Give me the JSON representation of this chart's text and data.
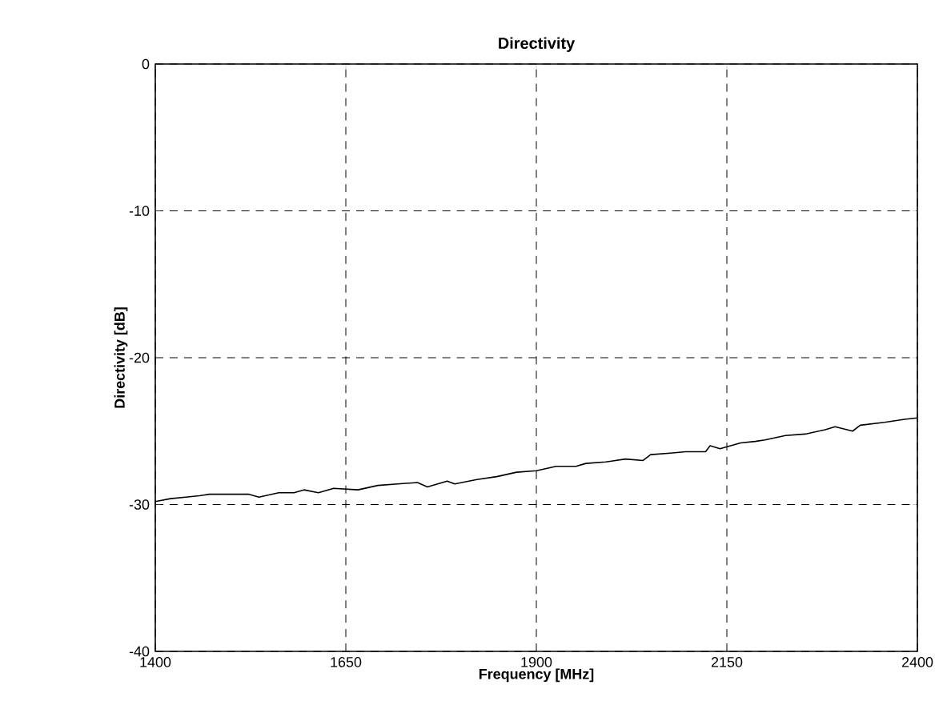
{
  "chart_data": {
    "type": "line",
    "title": "Directivity",
    "xlabel": "Frequency [MHz]",
    "ylabel": "Directivity [dB]",
    "xlim": [
      1400,
      2400
    ],
    "ylim": [
      -40,
      0
    ],
    "xticks": [
      1400,
      1650,
      1900,
      2150,
      2400
    ],
    "yticks": [
      -40,
      -30,
      -20,
      -10,
      0
    ],
    "grid": true,
    "series": [
      {
        "color": "#000000",
        "x": [
          1400,
          1420,
          1440,
          1458,
          1471,
          1497,
          1523,
          1536,
          1562,
          1582,
          1595,
          1614,
          1634,
          1666,
          1692,
          1718,
          1744,
          1757,
          1783,
          1793,
          1822,
          1848,
          1874,
          1900,
          1926,
          1952,
          1965,
          1991,
          2017,
          2040,
          2050,
          2076,
          2096,
          2122,
          2128,
          2141,
          2168,
          2187,
          2200,
          2227,
          2253,
          2279,
          2292,
          2315,
          2325,
          2357,
          2383,
          2400
        ],
        "values": [
          -29.8,
          -29.6,
          -29.5,
          -29.4,
          -29.3,
          -29.3,
          -29.3,
          -29.5,
          -29.2,
          -29.2,
          -29.0,
          -29.2,
          -28.9,
          -29.0,
          -28.7,
          -28.6,
          -28.5,
          -28.8,
          -28.4,
          -28.6,
          -28.3,
          -28.1,
          -27.8,
          -27.7,
          -27.4,
          -27.4,
          -27.2,
          -27.1,
          -26.9,
          -27.0,
          -26.6,
          -26.5,
          -26.4,
          -26.4,
          -26.0,
          -26.2,
          -25.8,
          -25.7,
          -25.6,
          -25.3,
          -25.2,
          -24.9,
          -24.7,
          -25.0,
          -24.6,
          -24.4,
          -24.2,
          -24.1
        ]
      }
    ]
  }
}
